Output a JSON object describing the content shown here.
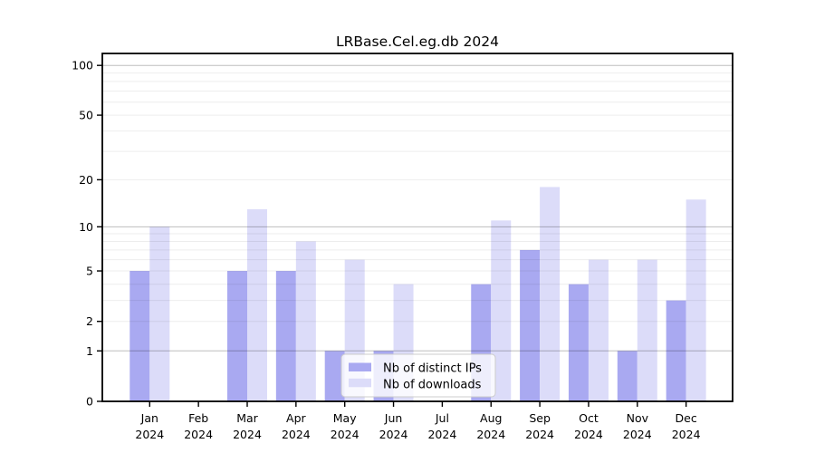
{
  "title": "LRBase.Cel.eg.db 2024",
  "chart_data": {
    "type": "bar",
    "title": "LRBase.Cel.eg.db 2024",
    "xlabel": "",
    "ylabel": "",
    "year": "2024",
    "months": [
      "Jan",
      "Feb",
      "Mar",
      "Apr",
      "May",
      "Jun",
      "Jul",
      "Aug",
      "Sep",
      "Oct",
      "Nov",
      "Dec"
    ],
    "categories": [
      "Jan 2024",
      "Feb 2024",
      "Mar 2024",
      "Apr 2024",
      "May 2024",
      "Jun 2024",
      "Jul 2024",
      "Aug 2024",
      "Sep 2024",
      "Oct 2024",
      "Nov 2024",
      "Dec 2024"
    ],
    "series": [
      {
        "name": "Nb of distinct IPs",
        "color": "#a9a9f1",
        "values": [
          5,
          0,
          5,
          5,
          1,
          1,
          0,
          4,
          7,
          4,
          1,
          3
        ]
      },
      {
        "name": "Nb of downloads",
        "color": "#dcdcf9",
        "values": [
          10,
          0,
          13,
          8,
          6,
          4,
          0,
          11,
          18,
          6,
          6,
          15
        ]
      }
    ],
    "y_axis": {
      "scale": "log1p",
      "tick_values": [
        0,
        1,
        2,
        5,
        10,
        20,
        50,
        100
      ],
      "tick_labels": [
        "0",
        "1",
        "2",
        "5",
        "10",
        "20",
        "50",
        "100"
      ],
      "major_gridlines": [
        1,
        10,
        100
      ],
      "minor_gridlines": [
        2,
        3,
        4,
        5,
        6,
        7,
        8,
        9,
        20,
        30,
        40,
        50,
        60,
        70,
        80,
        90
      ],
      "top_value": 120
    },
    "legend": {
      "position": "lower center",
      "entries": [
        "Nb of distinct IPs",
        "Nb of downloads"
      ]
    },
    "grid": true,
    "colors": {
      "distinct_ips_bar": "#a9a9f1",
      "downloads_bar": "#dcdcf9",
      "major_gridline": "#bdbdbd",
      "minor_gridline": "#ededed",
      "axis": "#000000",
      "legend_border": "#cccccc"
    }
  }
}
